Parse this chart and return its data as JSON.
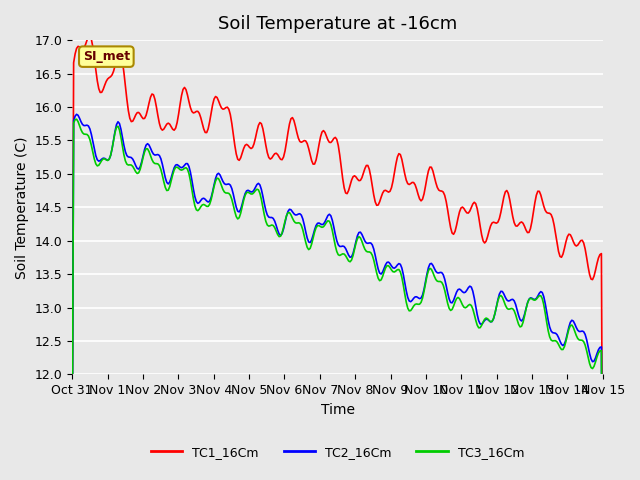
{
  "title": "Soil Temperature at -16cm",
  "xlabel": "Time",
  "ylabel": "Soil Temperature (C)",
  "ylim": [
    12.0,
    17.0
  ],
  "yticks": [
    12.0,
    12.5,
    13.0,
    13.5,
    14.0,
    14.5,
    15.0,
    15.5,
    16.0,
    16.5,
    17.0
  ],
  "xtick_labels": [
    "Oct 31",
    "Nov 1",
    "Nov 2",
    "Nov 3",
    "Nov 4",
    "Nov 5",
    "Nov 6",
    "Nov 7",
    "Nov 8",
    "Nov 9",
    "Nov 10",
    "Nov 11",
    "Nov 12",
    "Nov 13",
    "Nov 14",
    "Nov 15"
  ],
  "colors": {
    "TC1": "#ff0000",
    "TC2": "#0000ff",
    "TC3": "#00cc00"
  },
  "legend_labels": [
    "TC1_16Cm",
    "TC2_16Cm",
    "TC3_16Cm"
  ],
  "watermark_text": "SI_met",
  "watermark_bg": "#ffff99",
  "watermark_border": "#aa8800",
  "bg_color": "#e8e8e8",
  "plot_bg_color": "#e8e8e8",
  "grid_color": "#ffffff",
  "title_fontsize": 13,
  "axis_fontsize": 10,
  "tick_fontsize": 9
}
